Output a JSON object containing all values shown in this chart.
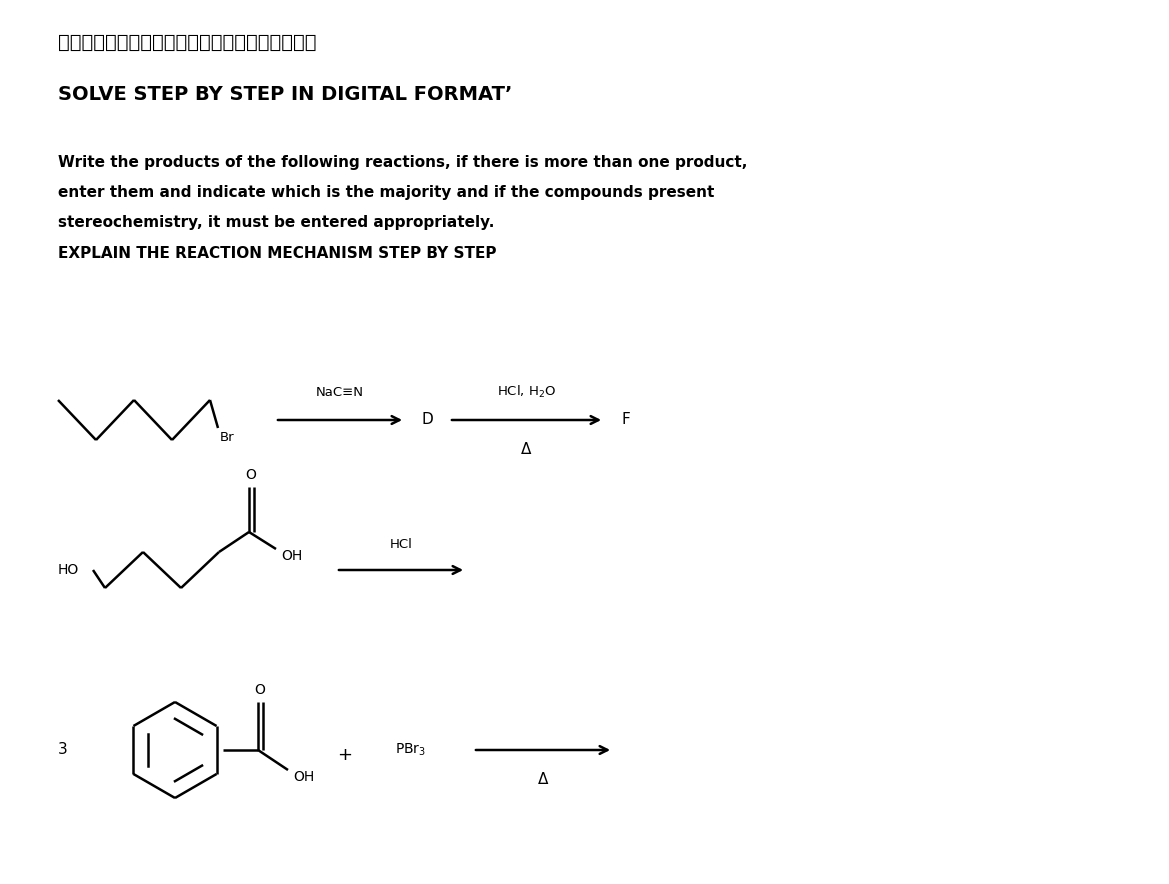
{
  "title_japanese": "デジタル形式で段階的に解決　　ありがとう！！",
  "title_english": "SOLVE STEP BY STEP IN DIGITAL FORMATʼ",
  "inst1": "Write the products of the following reactions, if there is more than one product,",
  "inst2": "enter them and indicate which is the majority and if the compounds present",
  "inst3": "stereochemistry, it must be entered appropriately.",
  "inst4": "EXPLAIN THE REACTION MECHANISM STEP BY STEP",
  "bg_color": "#ffffff",
  "fig_width": 11.69,
  "fig_height": 8.84,
  "dpi": 100
}
